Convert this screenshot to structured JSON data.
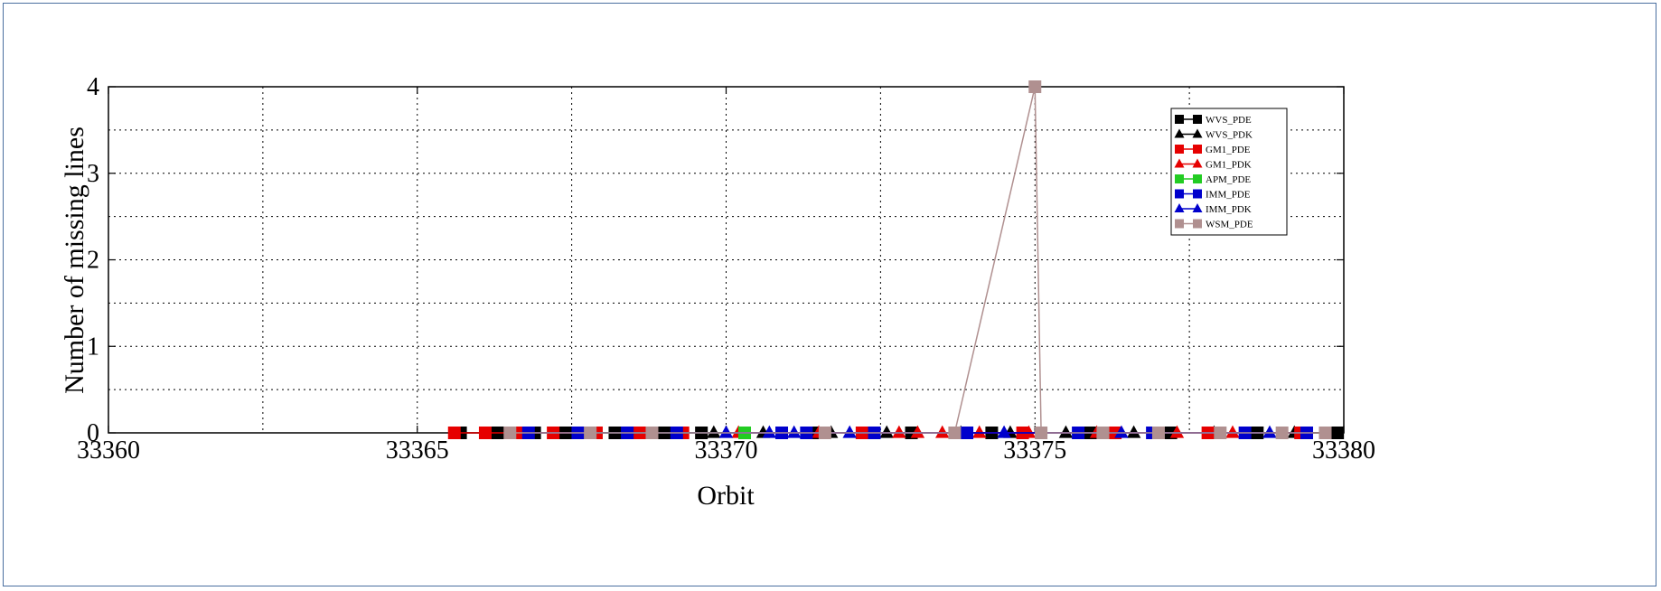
{
  "chart_data": {
    "type": "line",
    "title": "",
    "xlabel": "Orbit",
    "ylabel": "Number of missing lines",
    "xlim": [
      33360,
      33380
    ],
    "ylim": [
      0,
      4
    ],
    "x_ticks": [
      "33360",
      "33365",
      "33370",
      "33375",
      "33380"
    ],
    "y_ticks": [
      "0",
      "1",
      "2",
      "3",
      "4"
    ],
    "grid": true,
    "legend_position": "top-right",
    "series": [
      {
        "name": "WVS_PDE",
        "marker": "square",
        "color": "#000000",
        "x": [
          33365.7,
          33366.3,
          33366.9,
          33367.4,
          33368.2,
          33369.0,
          33369.6,
          33371.4,
          33373.0,
          33374.3,
          33375.9,
          33377.2,
          33378.6,
          33379.9
        ],
        "y": [
          0,
          0,
          0,
          0,
          0,
          0,
          0,
          0,
          0,
          0,
          0,
          0,
          0,
          0
        ]
      },
      {
        "name": "WVS_PDK",
        "marker": "triangle",
        "color": "#000000",
        "x": [
          33369.8,
          33370.6,
          33371.7,
          33372.6,
          33373.8,
          33374.6,
          33375.5,
          33376.6,
          33377.9,
          33379.2
        ],
        "y": [
          0,
          0,
          0,
          0,
          0,
          0,
          0,
          0,
          0,
          0
        ]
      },
      {
        "name": "GM1_PDE",
        "marker": "square",
        "color": "#e60000",
        "x": [
          33365.6,
          33366.1,
          33366.6,
          33367.2,
          33367.9,
          33368.6,
          33369.3,
          33372.2,
          33374.8,
          33376.3,
          33377.8,
          33379.3
        ],
        "y": [
          0,
          0,
          0,
          0,
          0,
          0,
          0,
          0,
          0,
          0,
          0,
          0
        ]
      },
      {
        "name": "GM1_PDK",
        "marker": "triangle",
        "color": "#e60000",
        "x": [
          33370.2,
          33371.5,
          33372.8,
          33373.1,
          33373.5,
          33374.1,
          33374.9,
          33376.0,
          33377.3,
          33378.2
        ],
        "y": [
          0,
          0,
          0,
          0,
          0,
          0,
          0,
          0,
          0,
          0
        ]
      },
      {
        "name": "APM_PDE",
        "marker": "square",
        "color": "#22cc22",
        "x": [
          33367.7,
          33370.3
        ],
        "y": [
          0,
          0
        ]
      },
      {
        "name": "IMM_PDE",
        "marker": "square",
        "color": "#0000cc",
        "x": [
          33366.8,
          33367.6,
          33368.4,
          33369.2,
          33370.9,
          33371.3,
          33372.4,
          33373.9,
          33375.7,
          33376.9,
          33378.4,
          33379.4
        ],
        "y": [
          0,
          0,
          0,
          0,
          0,
          0,
          0,
          0,
          0,
          0,
          0,
          0
        ]
      },
      {
        "name": "IMM_PDK",
        "marker": "triangle",
        "color": "#0000cc",
        "x": [
          33370.0,
          33370.7,
          33371.1,
          33372.0,
          33374.5,
          33376.4,
          33378.8
        ],
        "y": [
          0,
          0,
          0,
          0,
          0,
          0,
          0
        ]
      },
      {
        "name": "WSM_PDE",
        "marker": "square",
        "color": "#b09090",
        "x": [
          33366.5,
          33367.8,
          33368.8,
          33371.6,
          33373.7,
          33375.0,
          33375.1,
          33376.1,
          33377.0,
          33378.0,
          33379.0,
          33379.7
        ],
        "y": [
          0,
          0,
          0,
          0,
          0,
          4,
          0,
          0,
          0,
          0,
          0,
          0
        ]
      }
    ]
  }
}
